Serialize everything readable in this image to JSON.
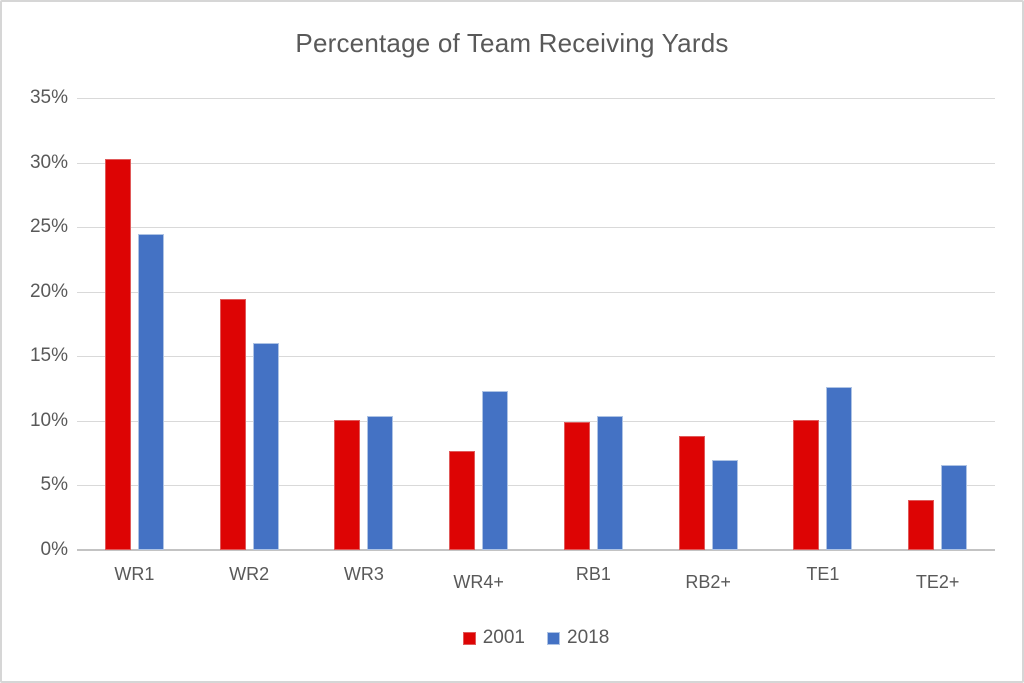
{
  "chart_data": {
    "type": "bar",
    "title": "Percentage of Team Receiving Yards",
    "categories": [
      "WR1",
      "WR2",
      "WR3",
      "WR4+",
      "RB1",
      "RB2+",
      "TE1",
      "TE2+"
    ],
    "series": [
      {
        "name": "2001",
        "color": "#dd0404",
        "border_color": "#e05a5a",
        "values": [
          30.3,
          19.4,
          10.1,
          7.7,
          9.9,
          8.8,
          10.1,
          3.9
        ]
      },
      {
        "name": "2018",
        "color": "#4472c4",
        "border_color": "#aec3e4",
        "values": [
          24.5,
          16.0,
          10.4,
          12.3,
          10.4,
          7.0,
          12.6,
          6.6
        ]
      }
    ],
    "xlabel": "",
    "ylabel": "",
    "ylim": [
      0,
      35
    ],
    "yticks": [
      {
        "label": "35%",
        "value": 35
      },
      {
        "label": "30%",
        "value": 30
      },
      {
        "label": "25%",
        "value": 25
      },
      {
        "label": "20%",
        "value": 20
      },
      {
        "label": "15%",
        "value": 15
      },
      {
        "label": "10%",
        "value": 10
      },
      {
        "label": "5%",
        "value": 5
      },
      {
        "label": "0%",
        "value": 0
      }
    ],
    "grid": true,
    "legend_position": "bottom",
    "colors": {
      "text": "#595959",
      "gridline": "#d9d9d9",
      "axis_line": "#c3c3c3",
      "background": "#ffffff",
      "frame_border": "#d6d6d6"
    }
  }
}
